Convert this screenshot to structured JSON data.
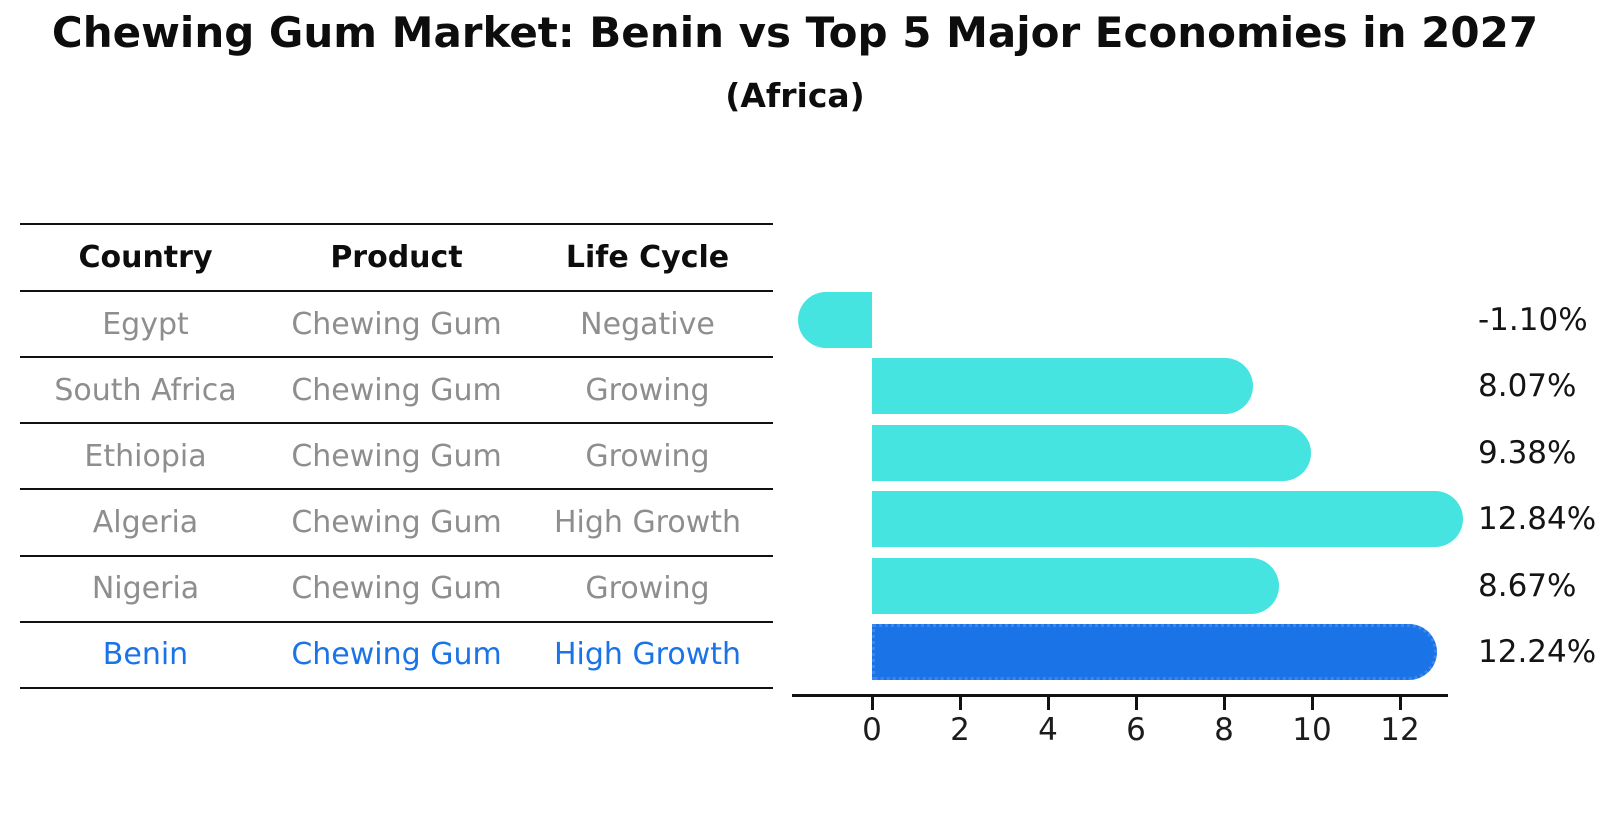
{
  "title": "Chewing Gum Market: Benin vs Top 5 Major Economies in 2027",
  "subtitle": "(Africa)",
  "table": {
    "headers": [
      "Country",
      "Product",
      "Life Cycle"
    ],
    "rows": [
      {
        "country": "Egypt",
        "product": "Chewing Gum",
        "life_cycle": "Negative",
        "highlight": false
      },
      {
        "country": "South Africa",
        "product": "Chewing Gum",
        "life_cycle": "Growing",
        "highlight": false
      },
      {
        "country": "Ethiopia",
        "product": "Chewing Gum",
        "life_cycle": "Growing",
        "highlight": false
      },
      {
        "country": "Algeria",
        "product": "Chewing Gum",
        "life_cycle": "High Growth",
        "highlight": false
      },
      {
        "country": "Nigeria",
        "product": "Chewing Gum",
        "life_cycle": "Growing",
        "highlight": false
      },
      {
        "country": "Benin",
        "product": "Chewing Gum",
        "life_cycle": "High Growth",
        "highlight": true
      }
    ]
  },
  "chart_data": {
    "type": "bar",
    "orientation": "horizontal",
    "categories": [
      "Egypt",
      "South Africa",
      "Ethiopia",
      "Algeria",
      "Nigeria",
      "Benin"
    ],
    "values": [
      -1.1,
      8.07,
      9.38,
      12.84,
      8.67,
      12.24
    ],
    "value_labels": [
      "-1.10%",
      "8.07%",
      "9.38%",
      "12.84%",
      "8.67%",
      "12.24%"
    ],
    "highlight_category": "Benin",
    "x_ticks": [
      0,
      2,
      4,
      6,
      8,
      10,
      12
    ],
    "xlim": [
      -1.8,
      13.1
    ],
    "grid": false,
    "legend": false,
    "bar_color": "#45e4e0",
    "highlight_color": "#1b73e8",
    "label_color": "#141414"
  }
}
